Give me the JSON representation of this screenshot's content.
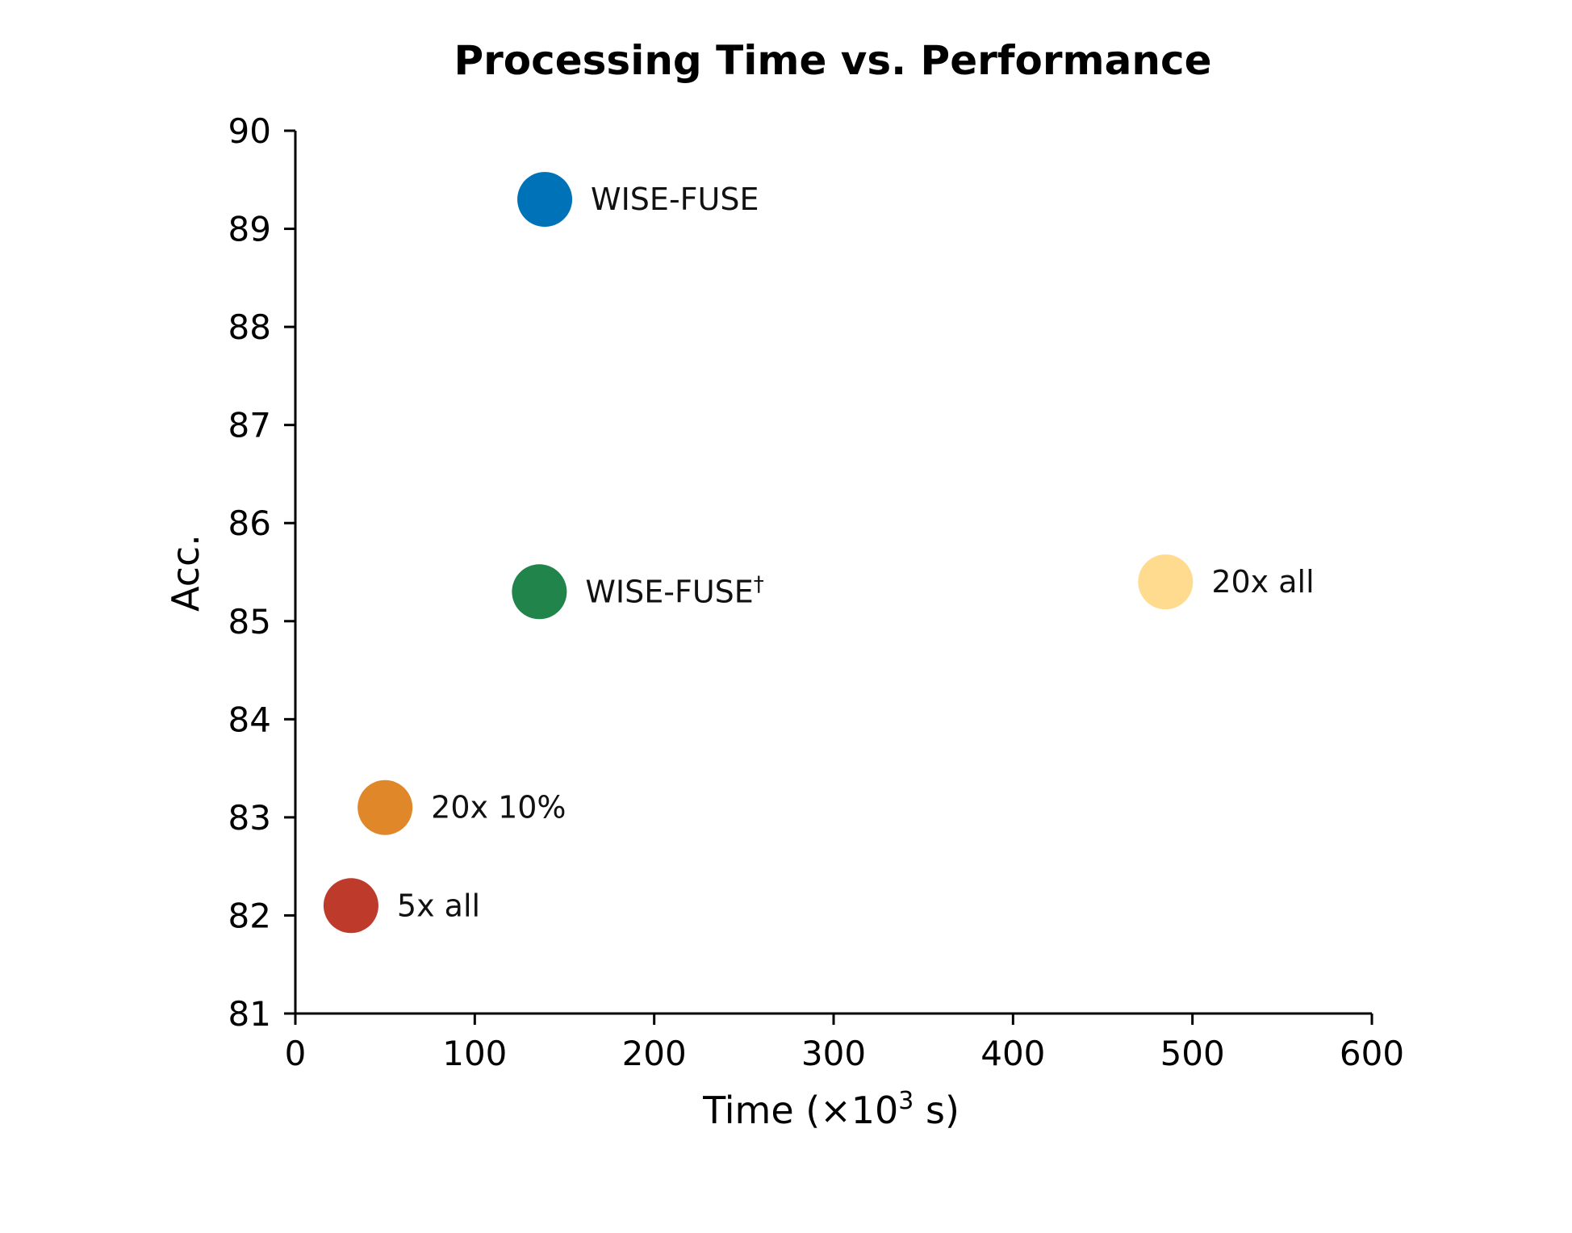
{
  "chart_data": {
    "type": "scatter",
    "title": "Processing Time vs. Performance",
    "xlabel": "Time (×10",
    "xlabel_sup": "3",
    "xlabel_suffix": " s)",
    "ylabel": "Acc.",
    "xlim": [
      0,
      600
    ],
    "ylim": [
      81,
      90
    ],
    "xticks": [
      0,
      100,
      200,
      300,
      400,
      500,
      600
    ],
    "yticks": [
      81,
      82,
      83,
      84,
      85,
      86,
      87,
      88,
      89,
      90
    ],
    "grid": false,
    "points": [
      {
        "label": "WISE-FUSE",
        "sup": "",
        "x": 139,
        "y": 89.3,
        "color": "#0072B8"
      },
      {
        "label": "WISE-FUSE",
        "sup": "†",
        "x": 136,
        "y": 85.3,
        "color": "#21844B"
      },
      {
        "label": "20x all",
        "sup": "",
        "x": 485,
        "y": 85.4,
        "color": "#FFDB8F"
      },
      {
        "label": "20x 10%",
        "sup": "",
        "x": 50,
        "y": 83.1,
        "color": "#E0872A"
      },
      {
        "label": "5x all",
        "sup": "",
        "x": 31,
        "y": 82.1,
        "color": "#BE3A2B"
      }
    ]
  }
}
